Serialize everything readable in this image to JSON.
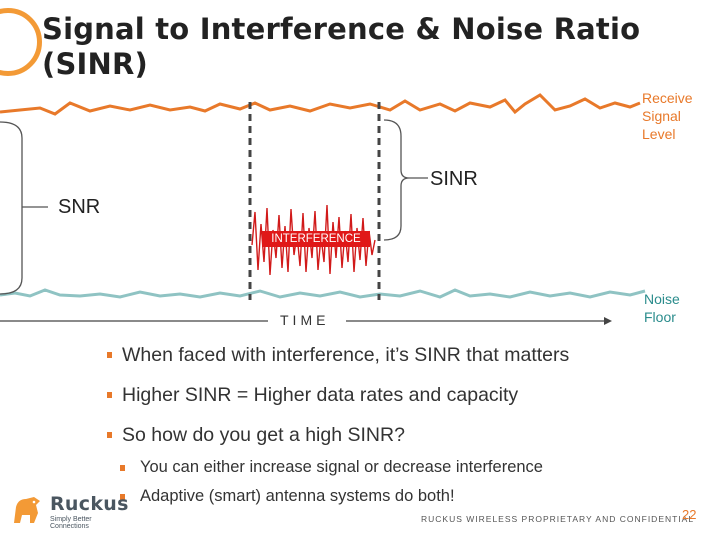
{
  "slide": {
    "title_line1": "Signal to Interference & Noise Ratio",
    "title_line2": "(SINR)"
  },
  "diagram": {
    "receive_label": "Receive Signal Level",
    "noise_label": "Noise Floor",
    "sinr_label": "SINR",
    "snr_label": "SNR",
    "interference_label": "INTERFERENCE",
    "time_label": "TIME",
    "colors": {
      "receive": "#e8792a",
      "noise": "#8fc3c3",
      "interference": "#d11a1a",
      "accent": "#f39a36"
    }
  },
  "bullets": [
    "When faced with interference, it’s SINR that matters",
    "Higher SINR = Higher data rates and capacity",
    "So how do you get a high SINR?"
  ],
  "sub_bullets": [
    "You can either increase signal or decrease interference",
    "Adaptive (smart) antenna systems do both!"
  ],
  "footer": {
    "logo_name": "Ruckus",
    "logo_tagline": "Simply Better Connections",
    "confidential": "RUCKUS WIRELESS PROPRIETARY AND CONFIDENTIAL",
    "page_number": "22"
  }
}
